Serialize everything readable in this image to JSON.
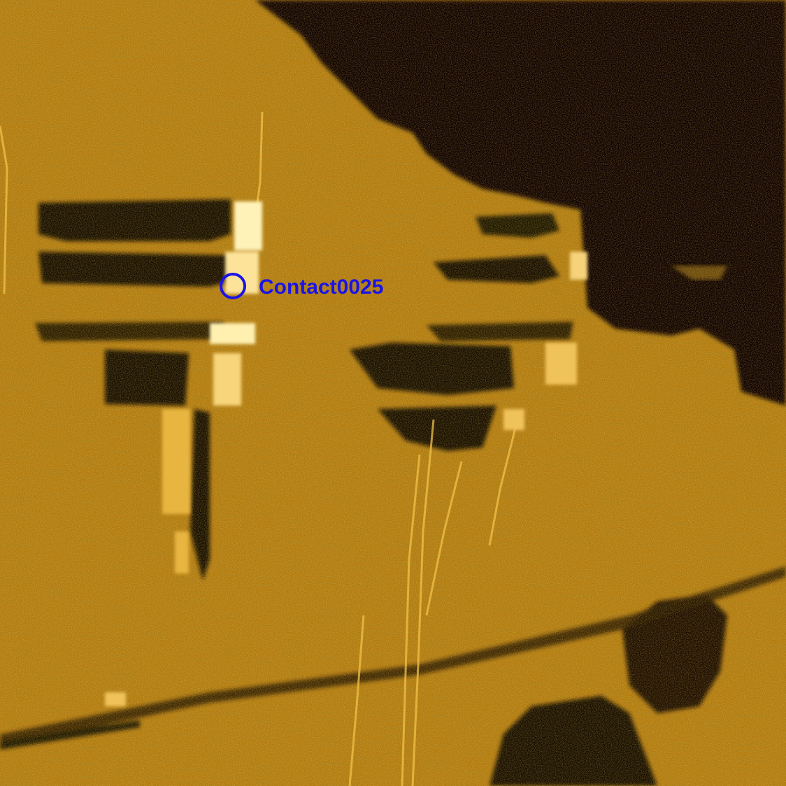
{
  "image": {
    "kind": "side-scan sonar imagery",
    "palette": {
      "seabed": "#b57f12",
      "seabed_light": "#d79a1c",
      "shadow": "#0c0700",
      "highlight": "#fff0b0",
      "marker": "#1a14e6"
    }
  },
  "contact": {
    "label": "Contact0025",
    "marker_color": "#1a14e6"
  }
}
